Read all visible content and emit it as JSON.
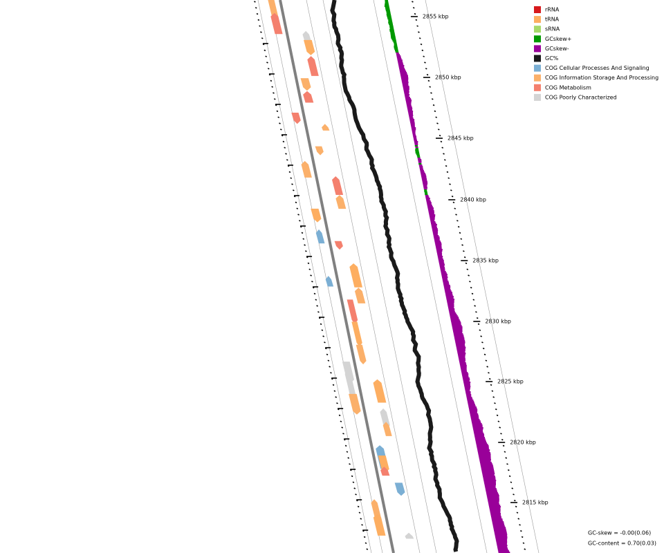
{
  "legend": [
    {
      "label": "rRNA",
      "color": "#d7191c"
    },
    {
      "label": "tRNA",
      "color": "#fdae61"
    },
    {
      "label": "sRNA",
      "color": "#a6d96a"
    },
    {
      "label": "GCskew+",
      "color": "#009900"
    },
    {
      "label": "GCskew-",
      "color": "#990099"
    },
    {
      "label": "GC%",
      "color": "#1a1a1a"
    },
    {
      "label": "COG Cellular Processes And Signaling",
      "color": "#7bafd4"
    },
    {
      "label": "COG Information Storage And Processing",
      "color": "#fbb06a"
    },
    {
      "label": "COG Metabolism",
      "color": "#f4806e"
    },
    {
      "label": "COG Poorly Characterized",
      "color": "#d4d4d4"
    }
  ],
  "ticks": [
    "2855 kbp",
    "2850 kbp",
    "2845 kbp",
    "2840 kbp",
    "2835 kbp",
    "2830 kbp",
    "2825 kbp",
    "2820 kbp",
    "2815 kbp"
  ],
  "footer": {
    "gc_skew": "GC-skew = -0.00(0.06)",
    "gc_content": "GC-content = 0.70(0.03)"
  }
}
